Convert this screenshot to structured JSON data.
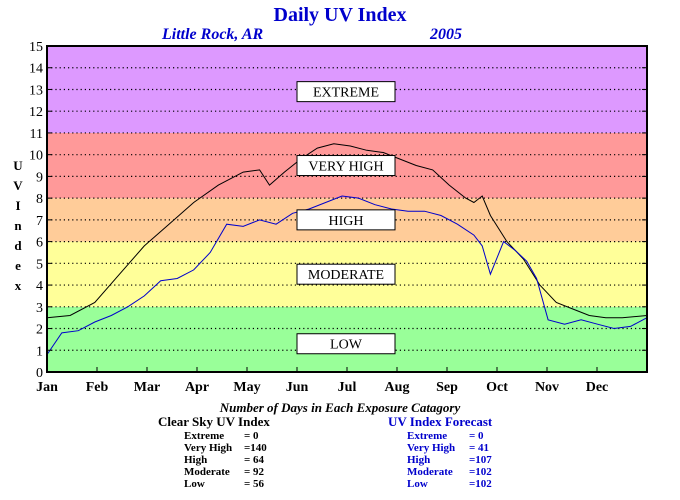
{
  "header": {
    "title": "Daily UV Index",
    "location": "Little Rock, AR",
    "year": "2005"
  },
  "chart_data": {
    "type": "line",
    "ylabel": "UV Index",
    "xlabel": "",
    "ylim": [
      0,
      15
    ],
    "yticks": [
      "0",
      "1",
      "2",
      "3",
      "4",
      "5",
      "6",
      "7",
      "8",
      "9",
      "10",
      "11",
      "12",
      "13",
      "14",
      "15"
    ],
    "month_labels": [
      "Jan",
      "Feb",
      "Mar",
      "Apr",
      "May",
      "Jun",
      "Jul",
      "Aug",
      "Sep",
      "Oct",
      "Nov",
      "Dec"
    ],
    "grid": true,
    "bands": [
      {
        "label": "LOW",
        "from": 0,
        "to": 3,
        "color": "#99ff99",
        "label_at": 1.3
      },
      {
        "label": "MODERATE",
        "from": 3,
        "to": 6,
        "color": "#ffff99",
        "label_at": 4.5
      },
      {
        "label": "HIGH",
        "from": 6,
        "to": 8,
        "color": "#ffcc99",
        "label_at": 7.0
      },
      {
        "label": "VERY HIGH",
        "from": 8,
        "to": 11,
        "color": "#ff9999",
        "label_at": 9.5
      },
      {
        "label": "EXTREME",
        "from": 11,
        "to": 15,
        "color": "#dd99ff",
        "label_at": 12.9
      }
    ],
    "series": [
      {
        "color": "#000000",
        "points": [
          [
            1,
            2.5
          ],
          [
            15,
            2.6
          ],
          [
            30,
            3.2
          ],
          [
            45,
            4.5
          ],
          [
            60,
            5.8
          ],
          [
            75,
            6.8
          ],
          [
            90,
            7.8
          ],
          [
            105,
            8.6
          ],
          [
            120,
            9.2
          ],
          [
            130,
            9.3
          ],
          [
            136,
            8.6
          ],
          [
            145,
            9.2
          ],
          [
            155,
            9.8
          ],
          [
            165,
            10.3
          ],
          [
            175,
            10.5
          ],
          [
            185,
            10.4
          ],
          [
            195,
            10.2
          ],
          [
            205,
            10.1
          ],
          [
            215,
            9.8
          ],
          [
            225,
            9.5
          ],
          [
            235,
            9.3
          ],
          [
            245,
            8.6
          ],
          [
            255,
            8.0
          ],
          [
            260,
            7.8
          ],
          [
            265,
            8.1
          ],
          [
            270,
            7.2
          ],
          [
            280,
            6.0
          ],
          [
            290,
            5.2
          ],
          [
            300,
            4.0
          ],
          [
            310,
            3.2
          ],
          [
            320,
            2.9
          ],
          [
            330,
            2.6
          ],
          [
            340,
            2.5
          ],
          [
            350,
            2.5
          ],
          [
            365,
            2.6
          ]
        ]
      },
      {
        "color": "#0000cc",
        "points": [
          [
            1,
            0.8
          ],
          [
            10,
            1.8
          ],
          [
            20,
            1.9
          ],
          [
            30,
            2.3
          ],
          [
            40,
            2.6
          ],
          [
            50,
            3.0
          ],
          [
            60,
            3.5
          ],
          [
            70,
            4.2
          ],
          [
            80,
            4.3
          ],
          [
            90,
            4.7
          ],
          [
            100,
            5.5
          ],
          [
            110,
            6.8
          ],
          [
            120,
            6.7
          ],
          [
            130,
            7.0
          ],
          [
            140,
            6.8
          ],
          [
            150,
            7.3
          ],
          [
            160,
            7.5
          ],
          [
            170,
            7.8
          ],
          [
            180,
            8.1
          ],
          [
            190,
            8.0
          ],
          [
            200,
            7.7
          ],
          [
            210,
            7.5
          ],
          [
            220,
            7.4
          ],
          [
            230,
            7.4
          ],
          [
            240,
            7.2
          ],
          [
            250,
            6.8
          ],
          [
            260,
            6.3
          ],
          [
            265,
            5.8
          ],
          [
            270,
            4.5
          ],
          [
            278,
            6.0
          ],
          [
            285,
            5.6
          ],
          [
            292,
            5.1
          ],
          [
            298,
            4.3
          ],
          [
            305,
            2.4
          ],
          [
            315,
            2.2
          ],
          [
            325,
            2.4
          ],
          [
            335,
            2.2
          ],
          [
            345,
            2.0
          ],
          [
            355,
            2.1
          ],
          [
            365,
            2.5
          ]
        ]
      }
    ],
    "categories_heading": "Number of Days in Each Exposure Catagory",
    "tables": [
      {
        "name": "Clear Sky UV Index",
        "color": "#000000",
        "rows": [
          {
            "category": "Extreme",
            "value": "0"
          },
          {
            "category": "Very High",
            "value": "140"
          },
          {
            "category": "High",
            "value": "64"
          },
          {
            "category": "Moderate",
            "value": "92"
          },
          {
            "category": "Low",
            "value": "56"
          }
        ]
      },
      {
        "name": "UV Index Forecast",
        "color": "#0000cc",
        "rows": [
          {
            "category": "Extreme",
            "value": "0"
          },
          {
            "category": "Very High",
            "value": "41"
          },
          {
            "category": "High",
            "value": "107"
          },
          {
            "category": "Moderate",
            "value": "102"
          },
          {
            "category": "Low",
            "value": "102"
          }
        ]
      }
    ]
  }
}
